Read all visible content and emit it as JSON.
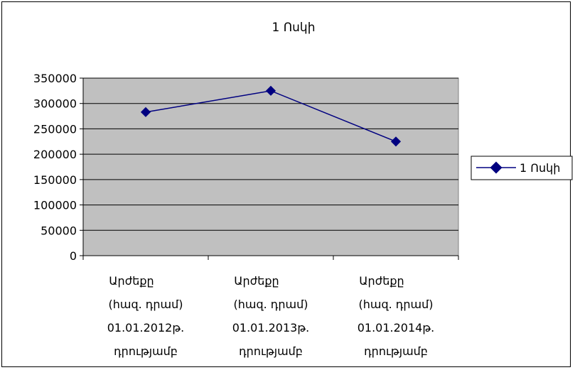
{
  "chart_data": {
    "type": "line",
    "title": "1 Ոսկի",
    "xlabel": "",
    "ylabel": "",
    "ylim": [
      0,
      350000
    ],
    "yticks": [
      "0",
      "50000",
      "100000",
      "150000",
      "200000",
      "250000",
      "300000",
      "350000"
    ],
    "categories": [
      [
        "Արժեքը",
        "(հազ. դրամ)",
        "01.01.2012թ.",
        "դրությամբ"
      ],
      [
        "Արժեքը",
        "(հազ. դրամ)",
        "01.01.2013թ.",
        "դրությամբ"
      ],
      [
        "Արժեքը",
        "(հազ. դրամ)",
        "01.01.2014թ.",
        "դրությամբ"
      ]
    ],
    "series": [
      {
        "name": "1 Ոսկի",
        "values": [
          283000,
          325000,
          225000
        ],
        "color": "#000080"
      }
    ],
    "plot_background": "#c0c0c0",
    "grid": true,
    "legend_position": "right"
  }
}
